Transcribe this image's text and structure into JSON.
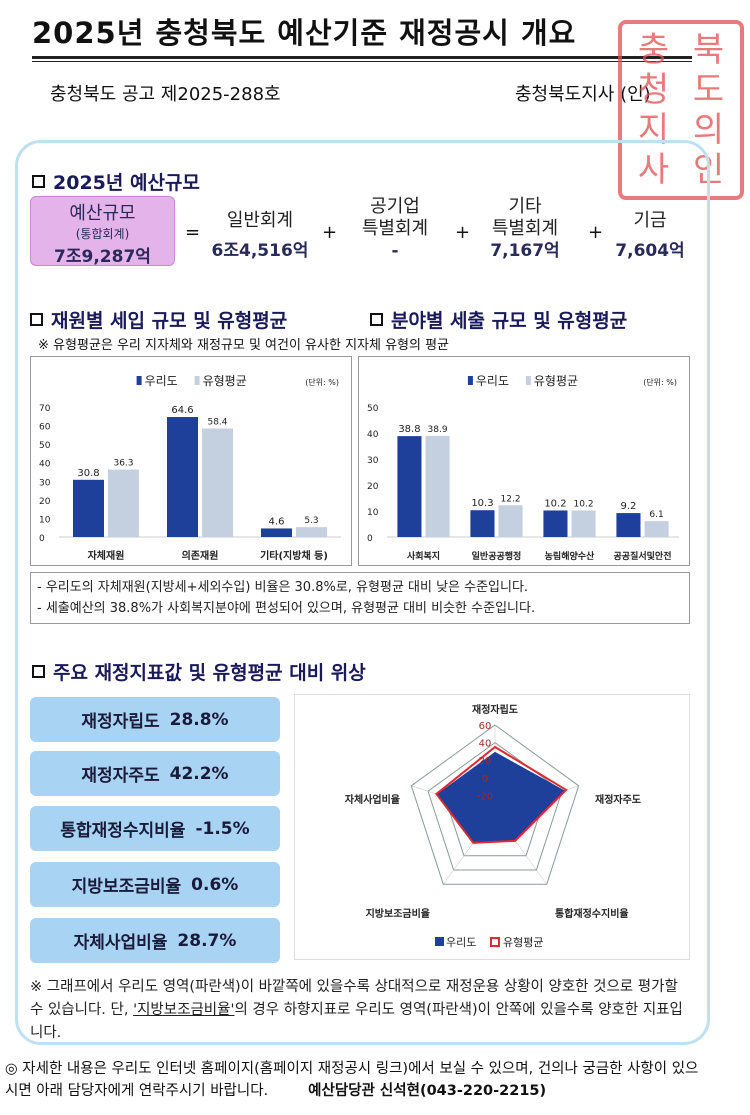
{
  "header": {
    "title": "2025년 충청북도 예산기준 재정공시 개요",
    "notice_no": "충청북도 공고 제2025-288호",
    "governor": "충청북도지사 (인)",
    "seal_text": "충청북도지사의인"
  },
  "budget": {
    "section_title": "2025년 예산규모",
    "main": {
      "label": "예산규모",
      "sub": "(통합회계)",
      "value": "7조9,287억"
    },
    "equals": "=",
    "plus": "+",
    "items": [
      {
        "label": "일반회계",
        "value": "6조4,516억"
      },
      {
        "label": "공기업\n특별회계",
        "label1": "공기업",
        "label2": "특별회계",
        "value": "-"
      },
      {
        "label1": "기타",
        "label2": "특별회계",
        "value": "7,167억"
      },
      {
        "label": "기금",
        "value": "7,604억"
      }
    ]
  },
  "revenue_section_title": "재원별 세입 규모 및 유형평균",
  "expense_section_title": "분야별 세출 규모 및 유형평균",
  "type_avg_note": "※ 유형평균은 우리 지자체와 재정규모 및 여건이 유사한 지자체 유형의 평균",
  "chart_data": [
    {
      "type": "bar",
      "categories": [
        "자체재원",
        "의존재원",
        "기타(지방채 등)"
      ],
      "series": [
        {
          "name": "우리도",
          "values": [
            30.8,
            64.6,
            4.6
          ],
          "color": "#1e3f9a"
        },
        {
          "name": "유형평균",
          "values": [
            36.3,
            58.4,
            5.3
          ],
          "color": "#c4cfe0"
        }
      ],
      "unit": "(단위: %)",
      "ylim": [
        0,
        70
      ],
      "yticks": [
        0,
        10,
        20,
        30,
        40,
        50,
        60,
        70
      ],
      "legend": "top"
    },
    {
      "type": "bar",
      "categories": [
        "사회복지",
        "일반공공행정",
        "농림해양수산",
        "공공질서및안전"
      ],
      "series": [
        {
          "name": "우리도",
          "values": [
            38.8,
            10.3,
            10.2,
            9.2
          ],
          "color": "#1e3f9a"
        },
        {
          "name": "유형평균",
          "values": [
            38.9,
            12.2,
            10.2,
            6.1
          ],
          "color": "#c4cfe0"
        }
      ],
      "unit": "(단위: %)",
      "ylim": [
        0,
        50
      ],
      "yticks": [
        0,
        10,
        20,
        30,
        40,
        50
      ],
      "legend": "top"
    },
    {
      "type": "radar",
      "axes": [
        "재정자립도",
        "재정자주도",
        "통합재정수지비율",
        "지방보조금비율",
        "자체사업비율"
      ],
      "series": [
        {
          "name": "우리도",
          "values": [
            28.8,
            42.2,
            -1.5,
            0.6,
            28.7
          ],
          "color": "#1e3f9a"
        },
        {
          "name": "유형평균",
          "values": [
            35,
            45,
            -1,
            2,
            30
          ],
          "color": "#e0282e"
        }
      ],
      "rlim": [
        -40,
        60
      ],
      "rticks": [
        60,
        40,
        20,
        0,
        -20
      ],
      "legend": "bottom"
    }
  ],
  "summary": [
    "- 우리도의 자체재원(지방세+세외수입) 비율은 30.8%로, 유형평균 대비 낮은 수준입니다.",
    "- 세출예산의 38.8%가 사회복지분야에 편성되어 있으며, 유형평균 대비 비슷한 수준입니다."
  ],
  "indicators": {
    "section_title": "주요 재정지표값 및 유형평균 대비 위상",
    "items": [
      {
        "label": "재정자립도",
        "value": "28.8%"
      },
      {
        "label": "재정자주도",
        "value": "42.2%"
      },
      {
        "label": "통합재정수지비율",
        "value": "-1.5%"
      },
      {
        "label": "지방보조금비율",
        "value": "0.6%"
      },
      {
        "label": "자체사업비율",
        "value": "28.7%"
      }
    ]
  },
  "footnote": {
    "p1": "※ 그래프에서 우리도 영역(파란색)이 바깥쪽에 있을수록 상대적으로 재정운용 상황이 양호한 것으로 평가할 수 있습니다. 단, ",
    "u": "'지방보조금비율'",
    "p2": "의 경우 하향지표로 우리도 영역(파란색)이 안쪽에 있을수록 양호한 지표입니다."
  },
  "bottom": {
    "text": "◎ 자세한 내용은 우리도 인터넷 홈페이지(홈페이지 재정공시 링크)에서 보실 수 있으며, 건의나 궁금한 사항이 있으시면 아래 담당자에게 연락주시기 바랍니다.",
    "contact": "예산담당관 신석현(043-220-2215)"
  }
}
